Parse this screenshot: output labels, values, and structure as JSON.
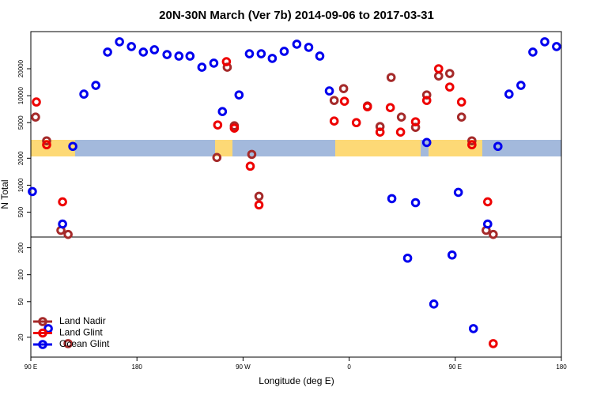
{
  "chart_data": {
    "type": "scatter",
    "title": "20N-30N March (Ver 7b)   2014-09-06 to 2017-03-31",
    "xlabel": "Longitude (deg E)",
    "ylabel": "N Total",
    "xlim": [
      90,
      540
    ],
    "ylim": [
      12,
      52000
    ],
    "log_y": true,
    "xticks": [
      {
        "value": 90,
        "label": "90 E"
      },
      180,
      {
        "value": 270,
        "label": "90 W"
      },
      {
        "value": 360,
        "label": "0"
      },
      {
        "value": 450,
        "label": "90 E"
      },
      {
        "value": 540,
        "label": "180"
      }
    ],
    "yticks": [
      20,
      50,
      100,
      200,
      500,
      1000,
      2000,
      5000,
      10000,
      20000
    ],
    "legend": "bottom left",
    "series": [
      {
        "name": "Land Nadir",
        "color": "#a52a2a",
        "x": [
          94,
          103.4,
          115.5,
          121.6,
          121.6,
          247.8,
          256.6,
          262.6,
          277.4,
          283.5,
          347.3,
          355.3,
          375.5,
          386.2,
          395.6,
          404.3,
          416.3,
          425.8,
          435.9,
          445.3,
          455.3,
          464.1,
          476.2,
          482.2
        ],
        "values": [
          5770,
          3130,
          313,
          282,
          17,
          2040,
          20800,
          4610,
          2210,
          752,
          8850,
          12000,
          7670,
          4520,
          16000,
          5770,
          4430,
          10200,
          16600,
          17700,
          5770,
          3130,
          313,
          282
        ]
      },
      {
        "name": "Land Glint",
        "color": "#ee0000",
        "x": [
          94.7,
          103.4,
          116.9,
          248.5,
          255.9,
          262.6,
          276.1,
          283.5,
          347.3,
          356,
          366.1,
          375.5,
          386.2,
          394.9,
          403.6,
          416.3,
          425.8,
          435.9,
          445.3,
          455.3,
          464.1,
          477.5,
          482.2
        ],
        "values": [
          8500,
          2830,
          652,
          4710,
          24000,
          4340,
          1630,
          602,
          5210,
          8670,
          5000,
          7520,
          3920,
          7360,
          3920,
          5110,
          8850,
          20000,
          12500,
          8500,
          2830,
          652,
          17
        ]
      },
      {
        "name": "Ocean Glint",
        "color": "#0000ee",
        "x": [
          91.3,
          104.8,
          116.9,
          125.6,
          135,
          145.1,
          155.1,
          165.2,
          175.3,
          185.4,
          194.8,
          205.5,
          215.6,
          225,
          235.1,
          245.2,
          252.5,
          266.6,
          275.4,
          285.4,
          294.8,
          304.9,
          315.6,
          325.7,
          335.1,
          343.2,
          396.2,
          409.6,
          416.3,
          425.8,
          431.8,
          447.3,
          452.6,
          465.4,
          477.5,
          486.2,
          495.6,
          505.7,
          515.8,
          525.9,
          535.9
        ],
        "values": [
          850,
          25,
          368,
          2716,
          10420,
          13040,
          30700,
          40000,
          35400,
          30700,
          32600,
          28800,
          27700,
          27700,
          20800,
          23100,
          6650,
          10200,
          29400,
          29400,
          26100,
          31300,
          37600,
          34700,
          27700,
          11300,
          708,
          153,
          638,
          3000,
          47,
          166,
          832,
          25,
          368,
          2716,
          10420,
          13040,
          30700,
          40000,
          35400
        ]
      }
    ]
  }
}
